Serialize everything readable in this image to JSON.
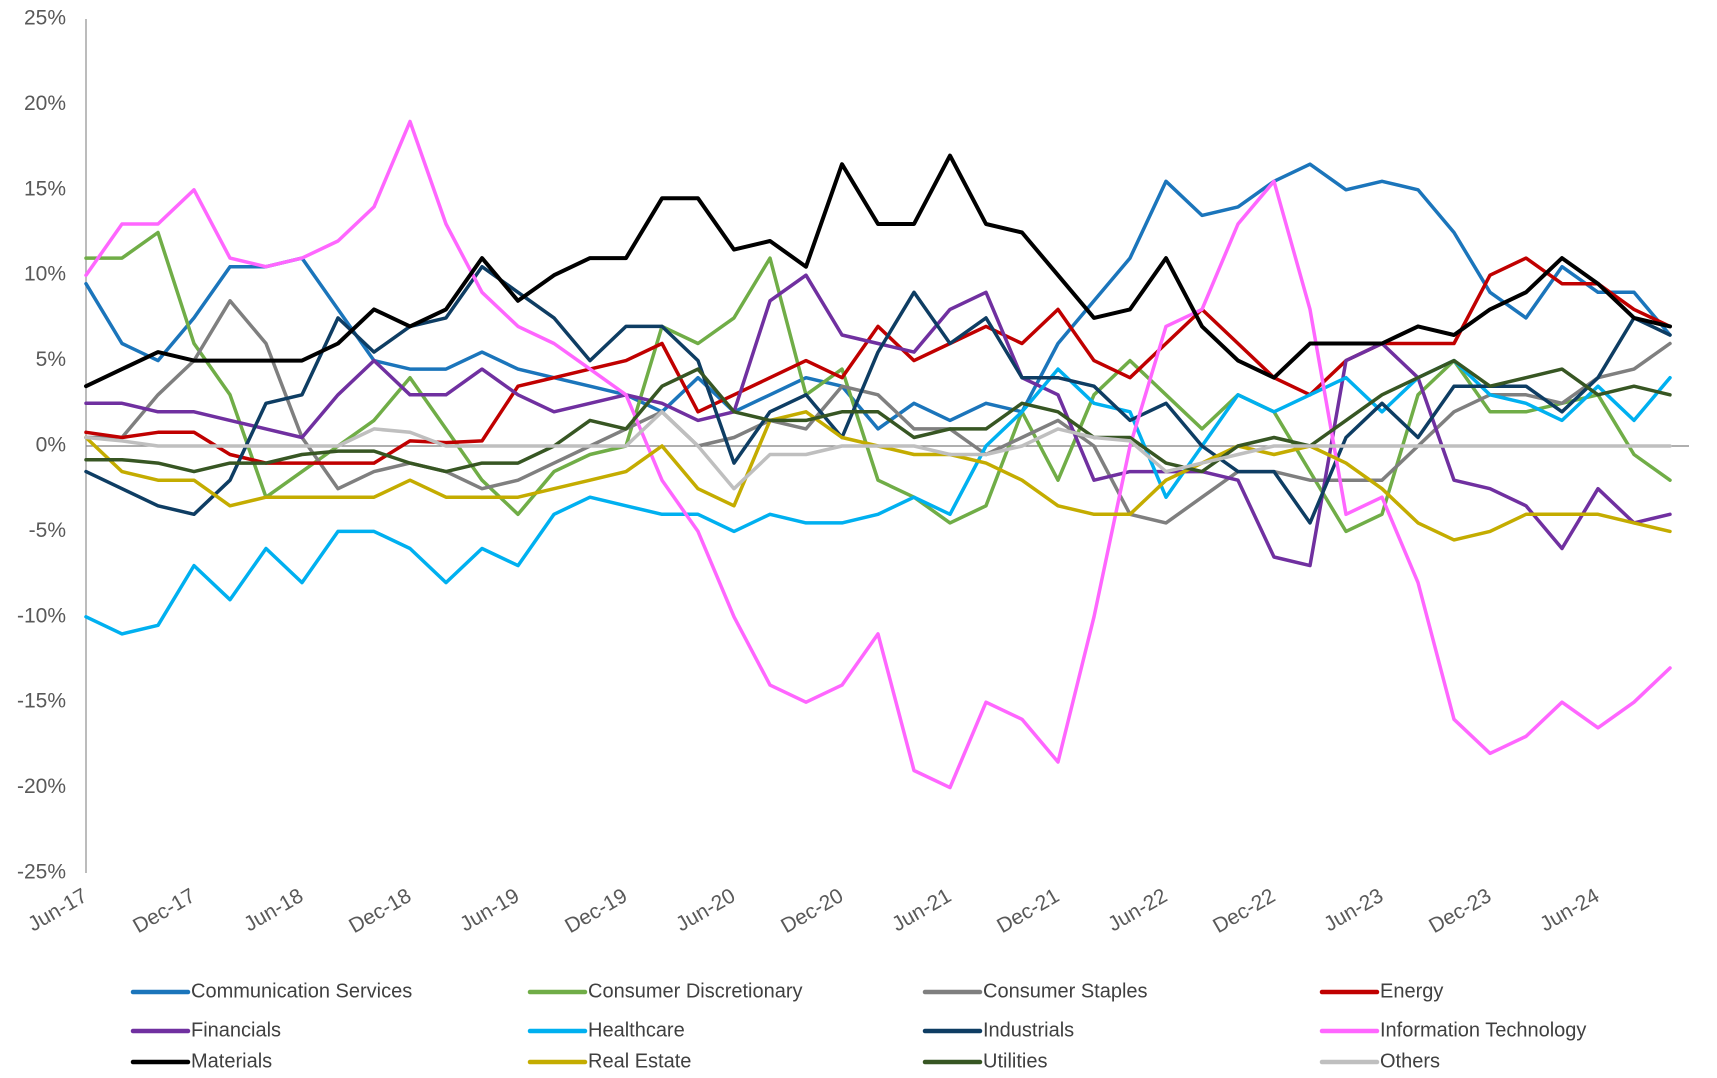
{
  "chart_data": {
    "type": "line",
    "categories": [
      "Jun-17",
      null,
      null,
      "Dec-17",
      null,
      null,
      "Jun-18",
      null,
      null,
      "Dec-18",
      null,
      null,
      "Jun-19",
      null,
      null,
      "Dec-19",
      null,
      null,
      "Jun-20",
      null,
      null,
      "Dec-20",
      null,
      null,
      "Jun-21",
      null,
      null,
      "Dec-21",
      null,
      null,
      "Jun-22",
      null,
      null,
      "Dec-22",
      null,
      null,
      "Jun-23",
      null,
      null,
      "Dec-23",
      null,
      null,
      "Jun-24",
      null,
      null
    ],
    "ylim": [
      -25,
      25
    ],
    "yticks": [
      {
        "value": -25,
        "label": "-25%"
      },
      {
        "value": -20,
        "label": "-20%"
      },
      {
        "value": -15,
        "label": "-15%"
      },
      {
        "value": -10,
        "label": "-10%"
      },
      {
        "value": -5,
        "label": "-5%"
      },
      {
        "value": 0,
        "label": "0%"
      },
      {
        "value": 5,
        "label": "5%"
      },
      {
        "value": 10,
        "label": "10%"
      },
      {
        "value": 15,
        "label": "15%"
      },
      {
        "value": 20,
        "label": "20%"
      },
      {
        "value": 25,
        "label": "25%"
      }
    ],
    "grid": false,
    "legend": "bottom",
    "series": [
      {
        "name": "Communication Services",
        "color": "#1b75bb",
        "values": [
          9.5,
          6,
          5,
          7.5,
          10.5,
          10.5,
          11,
          8,
          5,
          4.5,
          4.5,
          5.5,
          4.5,
          4,
          3.5,
          3,
          2,
          4,
          2,
          3,
          4,
          3.5,
          1,
          2.5,
          1.5,
          2.5,
          2,
          6,
          8.5,
          11,
          15.5,
          13.5,
          14,
          15.5,
          16.5,
          15,
          15.5,
          15,
          12.5,
          9,
          7.5,
          10.5,
          9,
          9,
          6.5
        ]
      },
      {
        "name": "Consumer Discretionary",
        "color": "#70ad47",
        "values": [
          11,
          11,
          12.5,
          6,
          3,
          -3,
          -1.5,
          0,
          1.5,
          4,
          1,
          -2,
          -4,
          -1.5,
          -0.5,
          0,
          7,
          6,
          7.5,
          11,
          3,
          4.5,
          -2,
          -3,
          -4.5,
          -3.5,
          2,
          -2,
          3,
          5,
          3,
          1,
          3,
          2,
          -1.5,
          -5,
          -4,
          3,
          5,
          2,
          2,
          2.5,
          3,
          -0.5,
          -2
        ]
      },
      {
        "name": "Consumer Staples",
        "color": "#7f7f7f",
        "values": [
          0.5,
          0.5,
          3,
          5,
          8.5,
          6,
          0.5,
          -2.5,
          -1.5,
          -1,
          -1.5,
          -2.5,
          -2,
          -1,
          0,
          1,
          2,
          0,
          0.5,
          1.5,
          1,
          3.5,
          3,
          1,
          1,
          -0.5,
          0.5,
          1.5,
          0,
          -4,
          -4.5,
          -3,
          -1.5,
          -1.5,
          -2,
          -2,
          -2,
          0,
          2,
          3,
          3,
          2.5,
          4,
          4.5,
          6
        ]
      },
      {
        "name": "Energy",
        "color": "#c00000",
        "values": [
          0.8,
          0.5,
          0.8,
          0.8,
          -0.5,
          -1,
          -1,
          -1,
          -1,
          0.3,
          0.2,
          0.3,
          3.5,
          4,
          4.5,
          5,
          6,
          2,
          3,
          4,
          5,
          4,
          7,
          5,
          6,
          7,
          6,
          8,
          5,
          4,
          6,
          8,
          6,
          4,
          3,
          5,
          6,
          6,
          6,
          10,
          11,
          9.5,
          9.5,
          8,
          7
        ]
      },
      {
        "name": "Financials",
        "color": "#7030a0",
        "values": [
          2.5,
          2.5,
          2,
          2,
          1.5,
          1,
          0.5,
          3,
          5,
          3,
          3,
          4.5,
          3,
          2,
          2.5,
          3,
          2.5,
          1.5,
          2,
          8.5,
          10,
          6.5,
          6,
          5.5,
          8,
          9,
          4,
          3,
          -2,
          -1.5,
          -1.5,
          -1.5,
          -2,
          -6.5,
          -7,
          5,
          6,
          4,
          -2,
          -2.5,
          -3.5,
          -6,
          -2.5,
          -4.5,
          -4
        ]
      },
      {
        "name": "Healthcare",
        "color": "#00b0f0",
        "values": [
          -10,
          -11,
          -10.5,
          -7,
          -9,
          -6,
          -8,
          -5,
          -5,
          -6,
          -8,
          -6,
          -7,
          -4,
          -3,
          -3.5,
          -4,
          -4,
          -5,
          -4,
          -4.5,
          -4.5,
          -4,
          -3,
          -4,
          0,
          2,
          4.5,
          2.5,
          2,
          -3,
          0,
          3,
          2,
          3,
          4,
          2,
          4,
          5,
          3,
          2.5,
          1.5,
          3.5,
          1.5,
          4
        ]
      },
      {
        "name": "Industrials",
        "color": "#0e3d63",
        "values": [
          -1.5,
          -2.5,
          -3.5,
          -4,
          -2,
          2.5,
          3,
          7.5,
          5.5,
          7,
          7.5,
          10.5,
          9,
          7.5,
          5,
          7,
          7,
          5,
          -1,
          2,
          3,
          0.5,
          5.5,
          9,
          6,
          7.5,
          4,
          4,
          3.5,
          1.5,
          2.5,
          0,
          -1.5,
          -1.5,
          -4.5,
          0.5,
          2.5,
          0.5,
          3.5,
          3.5,
          3.5,
          2,
          4,
          7.5,
          6.5
        ]
      },
      {
        "name": "Information Technology",
        "color": "#ff66ff",
        "values": [
          10,
          13,
          13,
          15,
          11,
          10.5,
          11,
          12,
          14,
          19,
          13,
          9,
          7,
          6,
          4.5,
          3,
          -2,
          -5,
          -10,
          -14,
          -15,
          -14,
          -11,
          -19,
          -20,
          -15,
          -16,
          -18.5,
          -10,
          0,
          7,
          8,
          13,
          15.5,
          8,
          -4,
          -3,
          -8,
          -16,
          -18,
          -17,
          -15,
          -16.5,
          -15,
          -13
        ]
      },
      {
        "name": "Materials",
        "color": "#000000",
        "values": [
          3.5,
          4.5,
          5.5,
          5,
          5,
          5,
          5,
          6,
          8,
          7,
          8,
          11,
          8.5,
          10,
          11,
          11,
          14.5,
          14.5,
          11.5,
          12,
          10.5,
          16.5,
          13,
          13,
          17,
          13,
          12.5,
          10,
          7.5,
          8,
          11,
          7,
          5,
          4,
          6,
          6,
          6,
          7,
          6.5,
          8,
          9,
          11,
          9.5,
          7.5,
          7
        ]
      },
      {
        "name": "Real Estate",
        "color": "#c4ac00",
        "values": [
          0.5,
          -1.5,
          -2,
          -2,
          -3.5,
          -3,
          -3,
          -3,
          -3,
          -2,
          -3,
          -3,
          -3,
          -2.5,
          -2,
          -1.5,
          0,
          -2.5,
          -3.5,
          1.5,
          2,
          0.5,
          0,
          -0.5,
          -0.5,
          -1,
          -2,
          -3.5,
          -4,
          -4,
          -2,
          -1,
          0,
          -0.5,
          0,
          -1,
          -2.5,
          -4.5,
          -5.5,
          -5,
          -4,
          -4,
          -4,
          -4.5,
          -5
        ]
      },
      {
        "name": "Utilities",
        "color": "#375623",
        "values": [
          -0.8,
          -0.8,
          -1,
          -1.5,
          -1,
          -1,
          -0.5,
          -0.3,
          -0.3,
          -1,
          -1.5,
          -1,
          -1,
          0,
          1.5,
          1,
          3.5,
          4.5,
          2,
          1.5,
          1.5,
          2,
          2,
          0.5,
          1,
          1,
          2.5,
          2,
          0.5,
          0.5,
          -1,
          -1.5,
          0,
          0.5,
          0,
          1.5,
          3,
          4,
          5,
          3.5,
          4,
          4.5,
          3,
          3.5,
          3
        ]
      },
      {
        "name": "Others",
        "color": "#bfbfbf",
        "values": [
          0.5,
          0.3,
          0,
          0,
          0,
          0,
          0,
          0,
          1,
          0.8,
          0,
          0,
          0,
          0,
          0,
          0,
          2,
          0,
          -2.5,
          -0.5,
          -0.5,
          0,
          0,
          0,
          -0.5,
          -0.5,
          0,
          1,
          0.5,
          0.3,
          -1.5,
          -1,
          -0.5,
          0,
          0,
          0,
          0,
          0,
          0,
          0,
          0,
          0,
          0,
          0,
          0
        ]
      }
    ]
  }
}
